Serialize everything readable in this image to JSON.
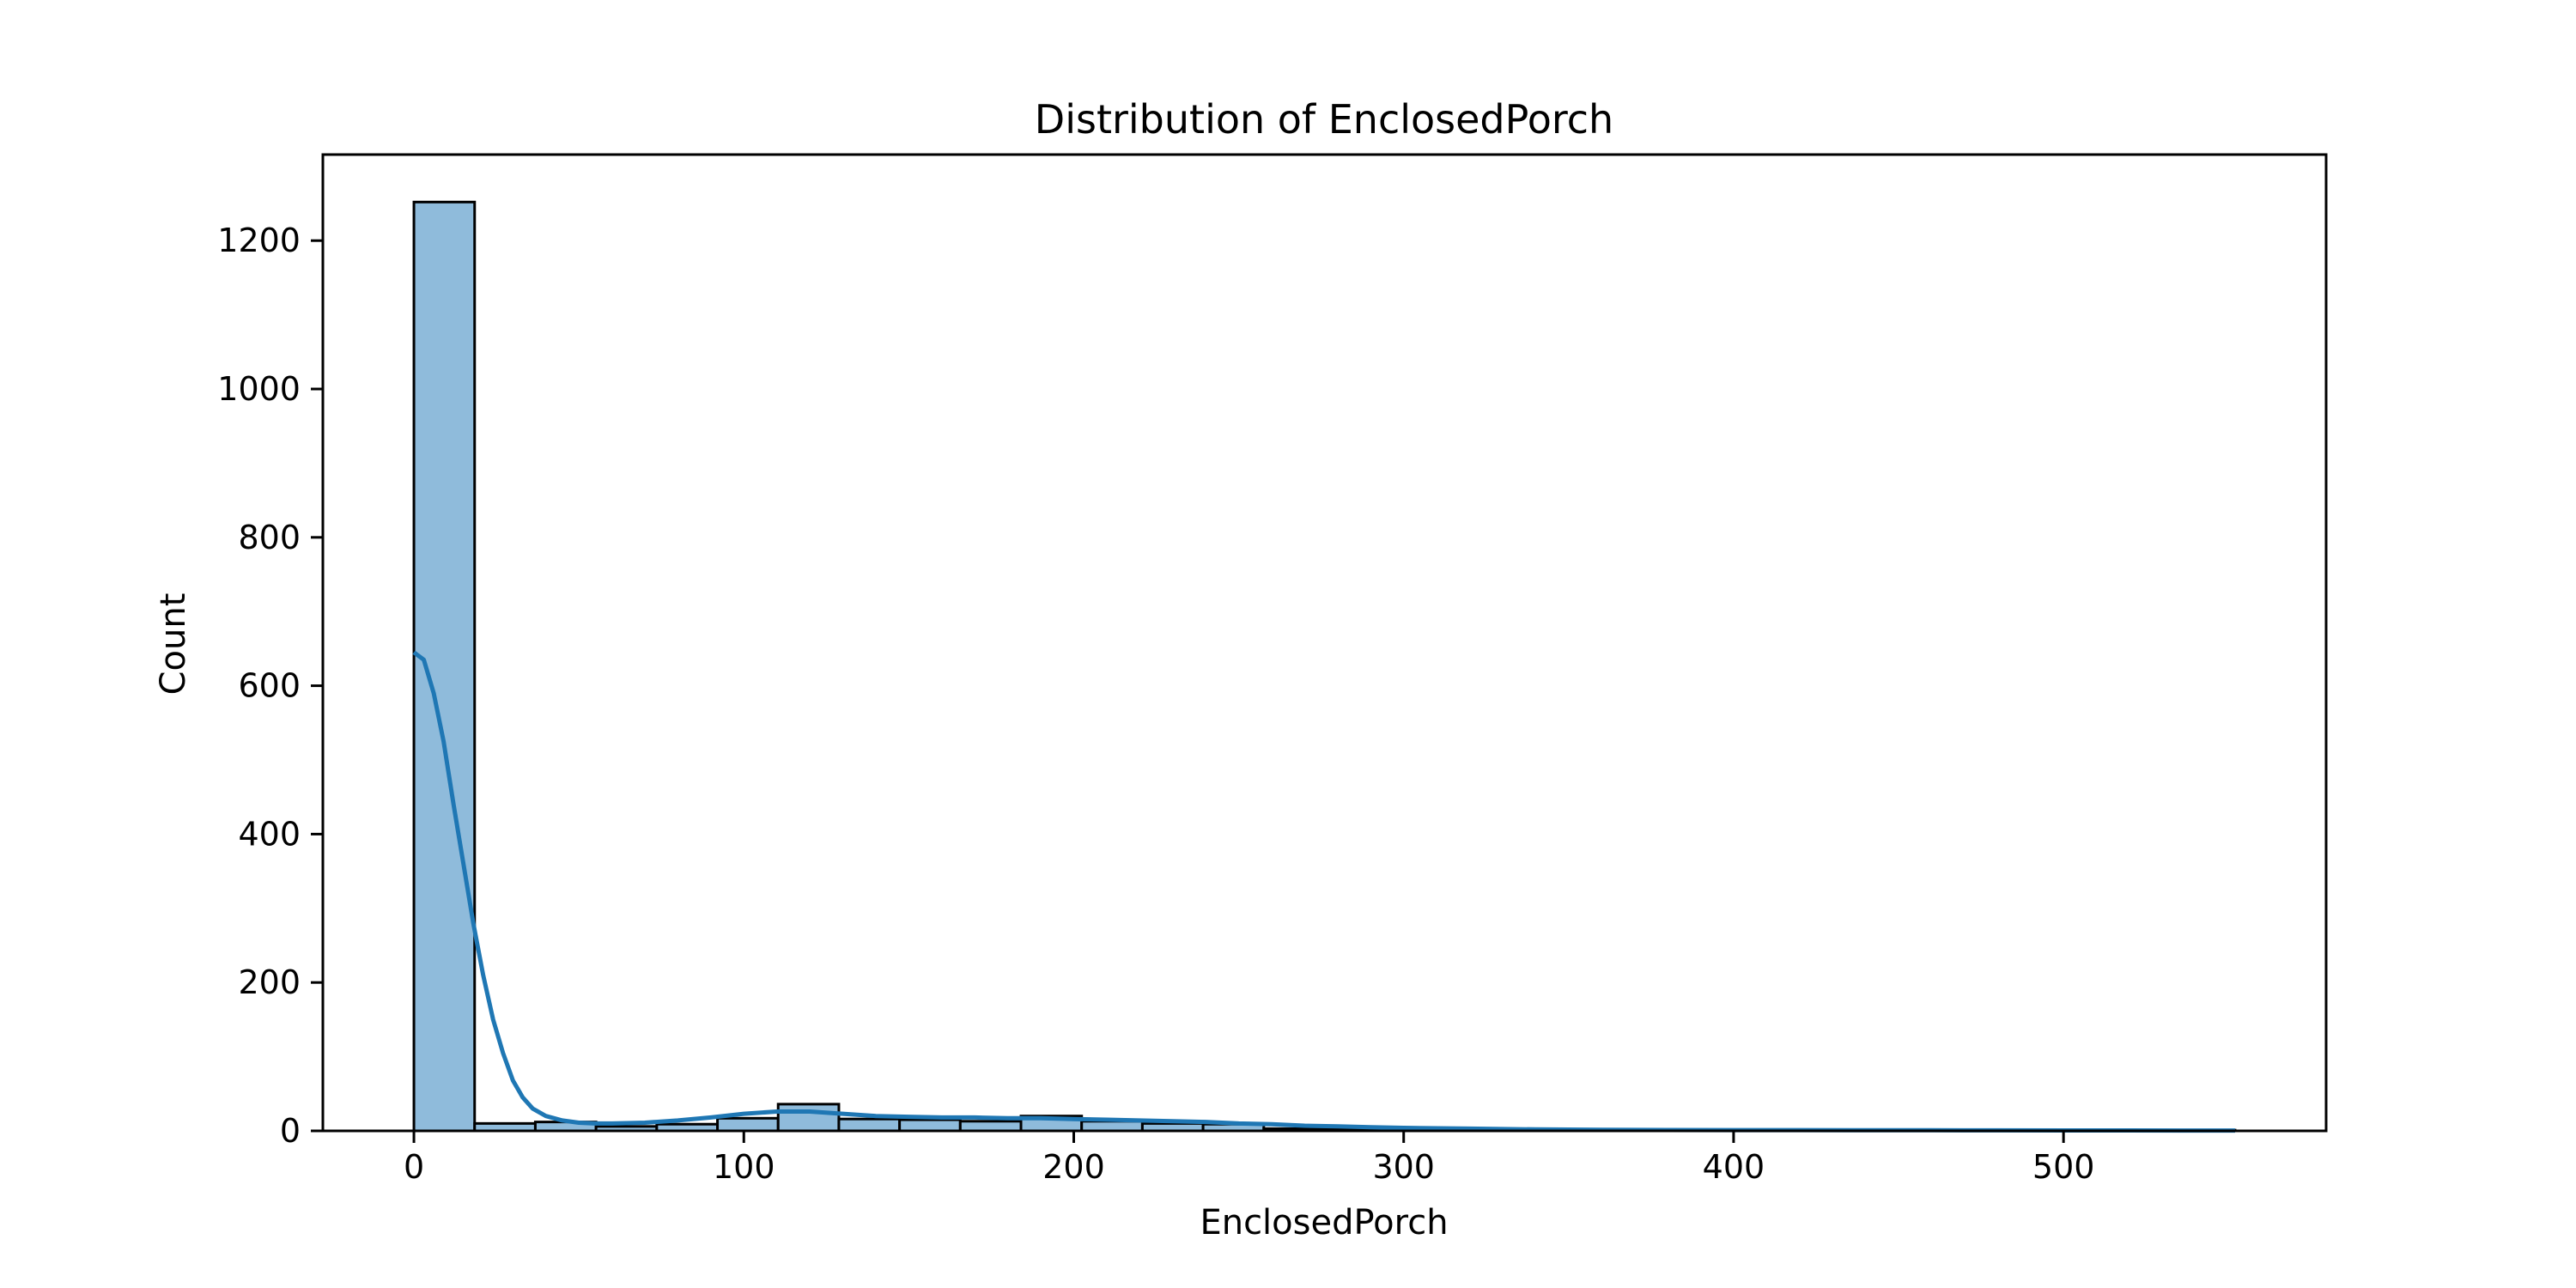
{
  "chart_data": {
    "type": "bar",
    "title": "Distribution of EnclosedPorch",
    "xlabel": "EnclosedPorch",
    "ylabel": "Count",
    "xlim": [
      -27.6,
      579.6
    ],
    "ylim": [
      0,
      1316
    ],
    "xticks": [
      0,
      100,
      200,
      300,
      400,
      500
    ],
    "yticks": [
      0,
      200,
      400,
      600,
      800,
      1000,
      1200
    ],
    "grid": false,
    "bin_width": 18.4,
    "bins": [
      {
        "x0": 0.0,
        "x1": 18.4,
        "count": 1252
      },
      {
        "x0": 18.4,
        "x1": 36.8,
        "count": 10
      },
      {
        "x0": 36.8,
        "x1": 55.2,
        "count": 12
      },
      {
        "x0": 55.2,
        "x1": 73.6,
        "count": 6
      },
      {
        "x0": 73.6,
        "x1": 92.0,
        "count": 9
      },
      {
        "x0": 92.0,
        "x1": 110.4,
        "count": 17
      },
      {
        "x0": 110.4,
        "x1": 128.8,
        "count": 36
      },
      {
        "x0": 128.8,
        "x1": 147.2,
        "count": 16
      },
      {
        "x0": 147.2,
        "x1": 165.6,
        "count": 15
      },
      {
        "x0": 165.6,
        "x1": 184.0,
        "count": 13
      },
      {
        "x0": 184.0,
        "x1": 202.4,
        "count": 20
      },
      {
        "x0": 202.4,
        "x1": 220.8,
        "count": 13
      },
      {
        "x0": 220.8,
        "x1": 239.2,
        "count": 10
      },
      {
        "x0": 239.2,
        "x1": 257.6,
        "count": 9
      },
      {
        "x0": 257.6,
        "x1": 276.0,
        "count": 3
      },
      {
        "x0": 276.0,
        "x1": 294.4,
        "count": 2
      },
      {
        "x0": 294.4,
        "x1": 312.8,
        "count": 1
      },
      {
        "x0": 312.8,
        "x1": 331.2,
        "count": 1
      },
      {
        "x0": 331.2,
        "x1": 349.6,
        "count": 0
      },
      {
        "x0": 349.6,
        "x1": 368.0,
        "count": 0
      },
      {
        "x0": 368.0,
        "x1": 386.4,
        "count": 1
      },
      {
        "x0": 386.4,
        "x1": 404.8,
        "count": 0
      },
      {
        "x0": 404.8,
        "x1": 423.2,
        "count": 0
      },
      {
        "x0": 423.2,
        "x1": 441.6,
        "count": 0
      },
      {
        "x0": 441.6,
        "x1": 460.0,
        "count": 0
      },
      {
        "x0": 460.0,
        "x1": 478.4,
        "count": 0
      },
      {
        "x0": 478.4,
        "x1": 496.8,
        "count": 0
      },
      {
        "x0": 496.8,
        "x1": 515.2,
        "count": 0
      },
      {
        "x0": 515.2,
        "x1": 533.6,
        "count": 0
      },
      {
        "x0": 533.6,
        "x1": 552.0,
        "count": 1
      }
    ],
    "kde": {
      "x": [
        0,
        3,
        6,
        9,
        12,
        15,
        18,
        21,
        24,
        27,
        30,
        33,
        36,
        40,
        45,
        50,
        55,
        60,
        70,
        80,
        90,
        100,
        110,
        120,
        130,
        140,
        150,
        160,
        170,
        180,
        190,
        200,
        210,
        220,
        230,
        240,
        250,
        260,
        270,
        280,
        290,
        300,
        320,
        340,
        360,
        380,
        400,
        420,
        440,
        460,
        480,
        500,
        520,
        540,
        552
      ],
      "y": [
        645,
        635,
        590,
        525,
        440,
        360,
        280,
        210,
        150,
        105,
        68,
        45,
        30,
        20,
        14,
        11,
        10,
        10,
        11,
        14,
        18,
        23,
        26,
        26,
        23,
        20,
        19,
        18,
        18,
        17,
        17,
        16,
        15,
        14,
        13,
        12,
        10,
        9,
        7,
        6,
        5,
        4,
        3,
        2,
        1.5,
        1.2,
        1,
        1,
        0.8,
        0.8,
        0.7,
        0.6,
        0.6,
        0.5,
        0.5
      ]
    },
    "colors": {
      "bar_fill": "#8fbbdb",
      "bar_edge": "#000000",
      "kde_line": "#1f77b4"
    }
  }
}
